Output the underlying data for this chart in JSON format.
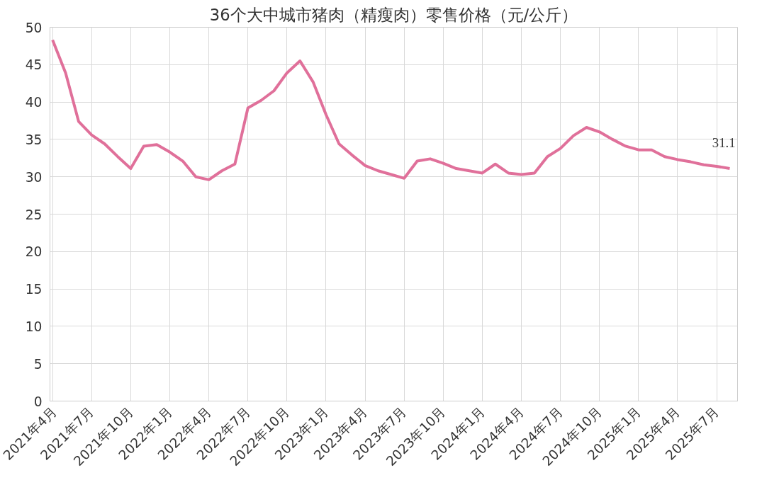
{
  "chart_data": {
    "type": "line",
    "title": "36个大中城市猪肉（精瘦肉）零售价格（元/公斤）",
    "categories": [
      "2021年4月",
      null,
      null,
      "2021年7月",
      null,
      null,
      "2021年10月",
      null,
      null,
      "2022年1月",
      null,
      null,
      "2022年4月",
      null,
      null,
      "2022年7月",
      null,
      null,
      "2022年10月",
      null,
      null,
      "2023年1月",
      null,
      null,
      "2023年4月",
      null,
      null,
      "2023年7月",
      null,
      null,
      "2023年10月",
      null,
      null,
      "2024年1月",
      null,
      null,
      "2024年4月",
      null,
      null,
      "2024年7月",
      null,
      null,
      "2024年10月",
      null,
      null,
      "2025年1月",
      null,
      null,
      "2025年4月",
      null,
      null,
      "2025年7月",
      null
    ],
    "series": [
      {
        "color": "#e0709a",
        "values": [
          48.3,
          43.9,
          37.4,
          35.6,
          34.4,
          32.7,
          31.1,
          34.1,
          34.3,
          33.3,
          32.1,
          30.0,
          29.6,
          30.8,
          31.7,
          39.2,
          40.2,
          41.5,
          43.9,
          45.5,
          42.7,
          38.3,
          34.4,
          32.9,
          31.5,
          30.8,
          30.3,
          29.8,
          32.1,
          32.4,
          31.8,
          31.1,
          30.8,
          30.5,
          31.7,
          30.5,
          30.3,
          30.5,
          32.7,
          33.8,
          35.5,
          36.6,
          36.0,
          35.0,
          34.1,
          33.6,
          33.6,
          32.7,
          32.3,
          32.0,
          31.6,
          31.4,
          31.1
        ],
        "value_labels": [
          null,
          null,
          null,
          null,
          null,
          null,
          null,
          null,
          null,
          null,
          null,
          null,
          null,
          null,
          null,
          null,
          null,
          null,
          null,
          null,
          null,
          null,
          null,
          null,
          null,
          null,
          null,
          null,
          null,
          null,
          null,
          null,
          null,
          null,
          null,
          null,
          null,
          null,
          null,
          null,
          null,
          null,
          null,
          null,
          null,
          null,
          null,
          null,
          null,
          null,
          null,
          null,
          "31.1"
        ]
      }
    ],
    "ylim": [
      0,
      50
    ],
    "yticks": [
      0,
      5,
      10,
      15,
      20,
      25,
      30,
      35,
      40,
      45,
      50
    ],
    "grid": true,
    "marker": "none",
    "line_style": "solid"
  }
}
